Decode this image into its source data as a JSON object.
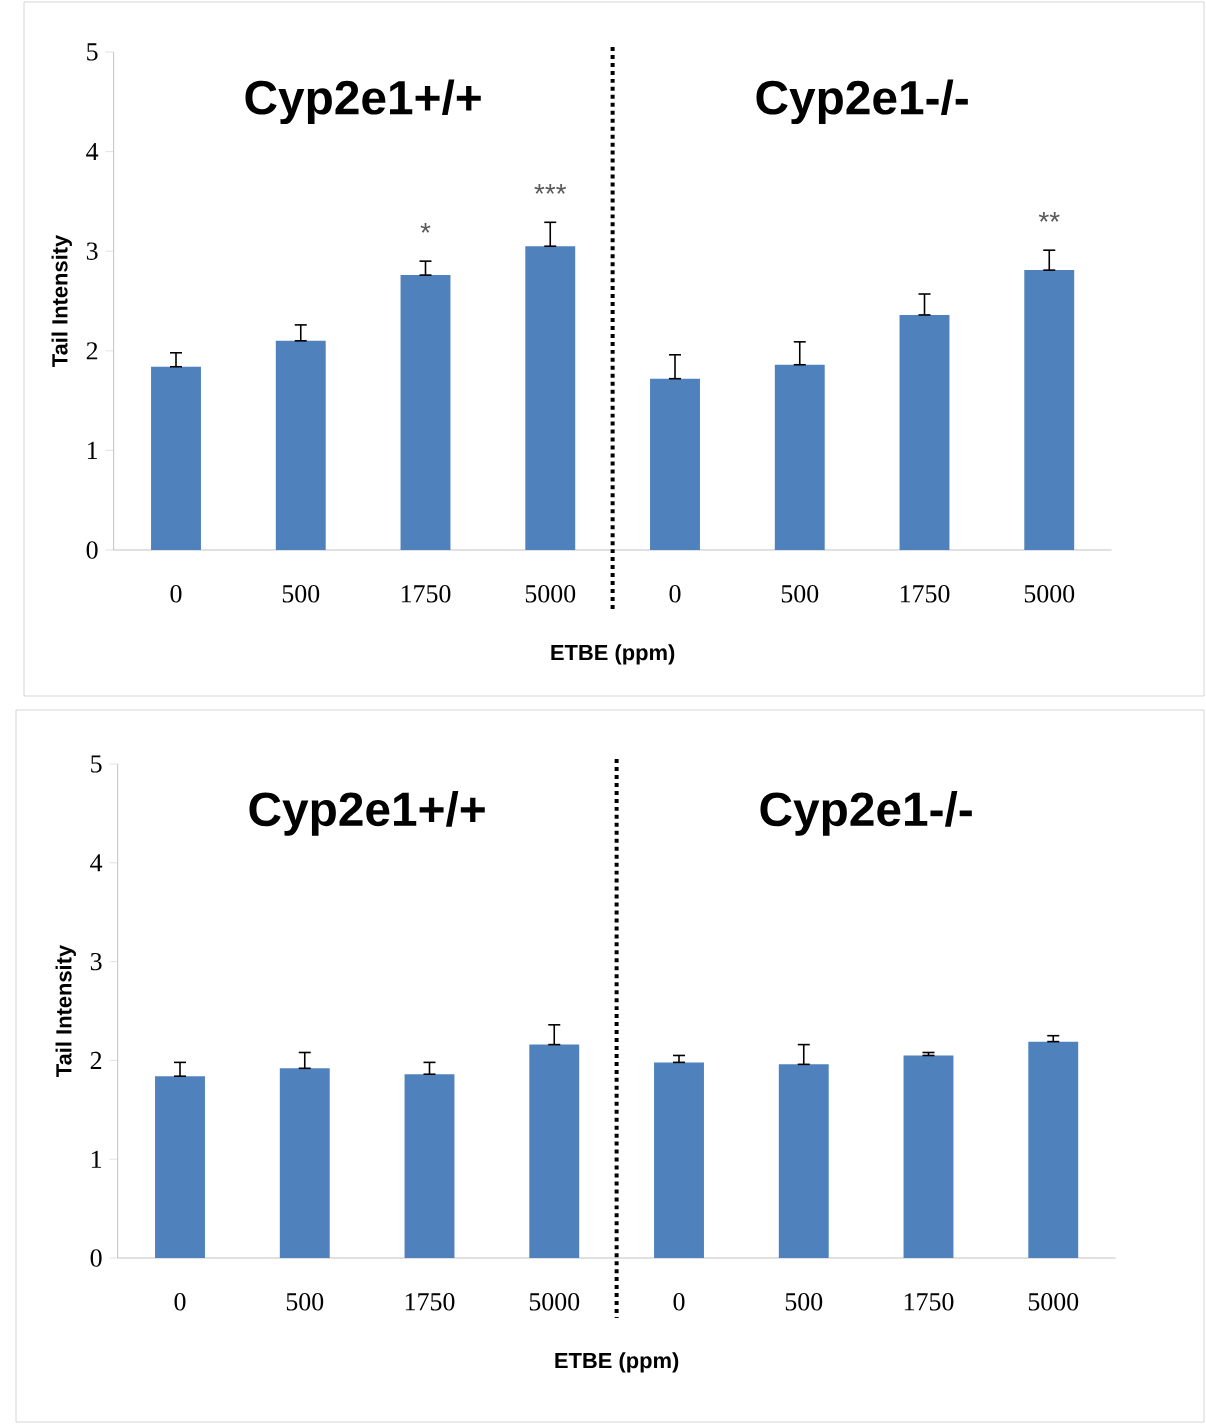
{
  "chart_data": [
    {
      "type": "bar",
      "xlabel": "ETBE (ppm)",
      "ylabel": "Tail Intensity",
      "categories": [
        "0",
        "500",
        "1750",
        "5000",
        "0",
        "500",
        "1750",
        "5000"
      ],
      "values": [
        1.84,
        2.1,
        2.76,
        3.05,
        1.72,
        1.86,
        2.36,
        2.81
      ],
      "errors": [
        [
          1.84,
          1.98
        ],
        [
          2.1,
          2.26
        ],
        [
          2.76,
          2.9
        ],
        [
          3.05,
          3.29
        ],
        [
          1.72,
          1.96
        ],
        [
          1.86,
          2.09
        ],
        [
          2.36,
          2.57
        ],
        [
          2.81,
          3.01
        ]
      ],
      "value_labels": [
        null,
        null,
        "*",
        "***",
        null,
        null,
        null,
        "**"
      ],
      "color": "#4f81bd",
      "ylim": [
        0,
        5
      ],
      "yticks": [
        0,
        1,
        2,
        3,
        4,
        5
      ],
      "annotations": [
        "Cyp2e1+/+",
        "Cyp2e1-/-"
      ]
    },
    {
      "type": "bar",
      "xlabel": "ETBE (ppm)",
      "ylabel": "Tail Intensity",
      "categories": [
        "0",
        "500",
        "1750",
        "5000",
        "0",
        "500",
        "1750",
        "5000"
      ],
      "values": [
        1.84,
        1.92,
        1.86,
        2.16,
        1.98,
        1.96,
        2.05,
        2.19
      ],
      "errors": [
        [
          1.84,
          1.98
        ],
        [
          1.92,
          2.08
        ],
        [
          1.86,
          1.98
        ],
        [
          2.16,
          2.36
        ],
        [
          1.98,
          2.05
        ],
        [
          1.96,
          2.16
        ],
        [
          2.05,
          2.08
        ],
        [
          2.19,
          2.25
        ]
      ],
      "color": "#4f81bd",
      "ylim": [
        0,
        5
      ],
      "yticks": [
        0,
        1,
        2,
        3,
        4,
        5
      ],
      "annotations": [
        "Cyp2e1+/+",
        "Cyp2e1-/-"
      ]
    }
  ]
}
